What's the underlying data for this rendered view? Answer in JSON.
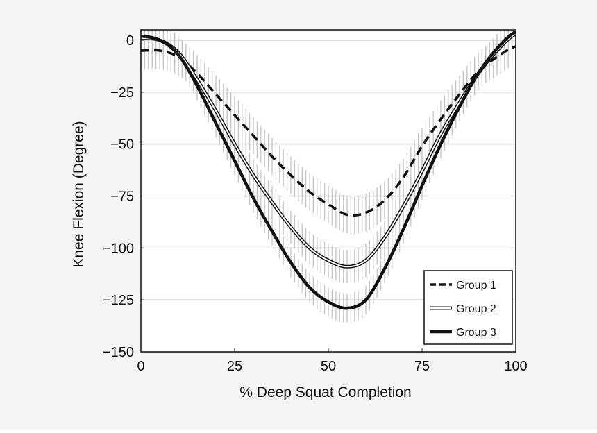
{
  "chart_data": {
    "type": "line",
    "title": "",
    "xlabel": "% Deep Squat Completion",
    "ylabel": "Knee Flexion (Degree)",
    "xlim": [
      0,
      100
    ],
    "ylim": [
      -150,
      5
    ],
    "x_ticks": [
      0,
      25,
      50,
      75,
      100
    ],
    "x_tick_labels": [
      "0",
      "25",
      "50",
      "75",
      "100"
    ],
    "y_ticks": [
      0,
      -25,
      -50,
      -75,
      -100,
      -125,
      -150
    ],
    "y_tick_labels": [
      "0",
      "−25",
      "−50",
      "−75",
      "−100",
      "−125",
      "−150"
    ],
    "grid": "horizontal",
    "legend_position": "bottom-right",
    "error_bars": "vertical SD bars at every 1% of completion",
    "series": [
      {
        "name": "Group 1",
        "style": "dashed",
        "color": "#111111",
        "x": [
          0,
          5,
          10,
          15,
          20,
          25,
          30,
          35,
          40,
          45,
          50,
          55,
          60,
          65,
          70,
          75,
          80,
          85,
          90,
          95,
          100
        ],
        "values": [
          -5,
          -5,
          -8,
          -16,
          -26,
          -36,
          -46,
          -56,
          -65,
          -73,
          -79,
          -84,
          -83,
          -77,
          -66,
          -51,
          -38,
          -26,
          -15,
          -8,
          -3
        ],
        "sd": [
          9,
          9,
          9,
          9,
          9,
          9,
          9,
          9,
          9,
          9,
          9,
          9,
          9,
          9,
          9,
          9,
          9,
          9,
          9,
          9,
          9
        ]
      },
      {
        "name": "Group 2",
        "style": "double",
        "color": "#111111",
        "x": [
          0,
          5,
          10,
          15,
          20,
          25,
          30,
          35,
          40,
          45,
          50,
          55,
          60,
          65,
          70,
          75,
          80,
          85,
          90,
          95,
          100
        ],
        "values": [
          1,
          0,
          -6,
          -19,
          -34,
          -50,
          -65,
          -78,
          -90,
          -100,
          -106,
          -109,
          -106,
          -95,
          -80,
          -63,
          -45,
          -30,
          -16,
          -5,
          3
        ],
        "sd": [
          8,
          8,
          8,
          8,
          8,
          8,
          8,
          8,
          8,
          8,
          8,
          8,
          8,
          8,
          8,
          8,
          8,
          8,
          8,
          8,
          8
        ]
      },
      {
        "name": "Group 3",
        "style": "solid-thick",
        "color": "#111111",
        "x": [
          0,
          5,
          10,
          15,
          20,
          25,
          30,
          35,
          40,
          45,
          50,
          55,
          60,
          65,
          70,
          75,
          80,
          85,
          90,
          95,
          100
        ],
        "values": [
          2,
          0,
          -7,
          -22,
          -40,
          -58,
          -76,
          -92,
          -107,
          -119,
          -126,
          -129,
          -125,
          -110,
          -91,
          -70,
          -50,
          -32,
          -16,
          -4,
          4
        ],
        "sd": [
          7,
          7,
          7,
          7,
          7,
          7,
          7,
          7,
          7,
          7,
          7,
          7,
          7,
          7,
          7,
          7,
          7,
          7,
          7,
          7,
          7
        ]
      }
    ]
  }
}
